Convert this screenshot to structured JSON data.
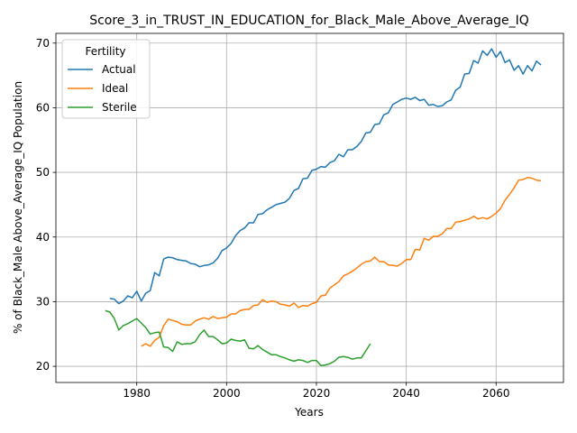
{
  "chart_data": {
    "type": "line",
    "title": "Score_3_in_TRUST_IN_EDUCATION_for_Black_Male_Above_Average_IQ",
    "xlabel": "Years",
    "ylabel": "% of Black_Male Above_Average_IQ Population",
    "xlim": [
      1962,
      2075
    ],
    "ylim": [
      17.5,
      71.5
    ],
    "xticks": [
      1980,
      2000,
      2020,
      2040,
      2060
    ],
    "yticks": [
      20,
      30,
      40,
      50,
      60,
      70
    ],
    "grid": true,
    "legend": {
      "title": "Fertility",
      "position": "upper-left"
    },
    "series": [
      {
        "name": "Actual",
        "color": "#1f77b4",
        "x": [
          1974,
          1975,
          1976,
          1977,
          1978,
          1979,
          1980,
          1981,
          1982,
          1983,
          1984,
          1985,
          1986,
          1987,
          1988,
          1989,
          1990,
          1991,
          1992,
          1993,
          1994,
          1995,
          1996,
          1997,
          1998,
          1999,
          2000,
          2001,
          2002,
          2003,
          2004,
          2005,
          2006,
          2007,
          2008,
          2009,
          2010,
          2011,
          2012,
          2013,
          2014,
          2015,
          2016,
          2017,
          2018,
          2019,
          2020,
          2021,
          2022,
          2023,
          2024,
          2025,
          2026,
          2027,
          2028,
          2029,
          2030,
          2031,
          2032,
          2033,
          2034,
          2035,
          2036,
          2037,
          2038,
          2039,
          2040,
          2041,
          2042,
          2043,
          2044,
          2045,
          2046,
          2047,
          2048,
          2049,
          2050,
          2051,
          2052,
          2053,
          2054,
          2055,
          2056,
          2057,
          2058,
          2059,
          2060,
          2061,
          2062,
          2063,
          2064,
          2065,
          2066,
          2067,
          2068,
          2069,
          2070
        ],
        "y": [
          30.5,
          30.4,
          29.7,
          30.1,
          30.9,
          30.6,
          31.6,
          30.1,
          31.3,
          31.7,
          34.5,
          34.0,
          36.6,
          36.9,
          36.8,
          36.5,
          36.4,
          36.3,
          35.9,
          35.8,
          35.4,
          35.6,
          35.7,
          36.0,
          36.7,
          37.9,
          38.3,
          39.0,
          40.2,
          41.0,
          41.4,
          42.2,
          42.2,
          43.5,
          43.6,
          44.2,
          44.6,
          45.0,
          45.2,
          45.4,
          46.0,
          47.2,
          47.5,
          49.0,
          49.1,
          50.3,
          50.5,
          50.9,
          50.8,
          51.5,
          51.8,
          52.8,
          52.4,
          53.5,
          53.5,
          54.0,
          54.8,
          56.1,
          56.2,
          57.4,
          57.5,
          58.9,
          59.2,
          60.5,
          60.9,
          61.3,
          61.5,
          61.3,
          61.6,
          61.1,
          61.3,
          60.4,
          60.5,
          60.2,
          60.3,
          60.9,
          61.2,
          62.7,
          63.2,
          65.2,
          65.3,
          67.3,
          66.9,
          68.8,
          68.1,
          69.1,
          67.8,
          68.7,
          67.0,
          67.4,
          65.8,
          66.5,
          65.2,
          66.5,
          65.7,
          67.2,
          66.6
        ]
      },
      {
        "name": "Ideal",
        "color": "#ff7f0e",
        "x": [
          1981,
          1982,
          1983,
          1984,
          1985,
          1986,
          1987,
          1988,
          1989,
          1990,
          1991,
          1992,
          1993,
          1994,
          1995,
          1996,
          1997,
          1998,
          1999,
          2000,
          2001,
          2002,
          2003,
          2004,
          2005,
          2006,
          2007,
          2008,
          2009,
          2010,
          2011,
          2012,
          2013,
          2014,
          2015,
          2016,
          2017,
          2018,
          2019,
          2020,
          2021,
          2022,
          2023,
          2024,
          2025,
          2026,
          2027,
          2028,
          2029,
          2030,
          2031,
          2032,
          2033,
          2034,
          2035,
          2036,
          2037,
          2038,
          2039,
          2040,
          2041,
          2042,
          2043,
          2044,
          2045,
          2046,
          2047,
          2048,
          2049,
          2050,
          2051,
          2052,
          2053,
          2054,
          2055,
          2056,
          2057,
          2058,
          2059,
          2060,
          2061,
          2062,
          2063,
          2064,
          2065,
          2066,
          2067,
          2068,
          2069,
          2070
        ],
        "y": [
          23.1,
          23.5,
          23.1,
          24.0,
          24.5,
          26.3,
          27.3,
          27.1,
          26.9,
          26.5,
          26.4,
          26.4,
          27.0,
          27.3,
          27.5,
          27.3,
          27.7,
          27.4,
          27.5,
          27.6,
          28.1,
          28.1,
          28.6,
          28.8,
          28.8,
          29.4,
          29.5,
          30.3,
          29.9,
          30.1,
          30.0,
          29.6,
          29.5,
          29.3,
          29.8,
          29.1,
          29.4,
          29.3,
          29.7,
          29.9,
          30.9,
          31.0,
          32.1,
          32.6,
          33.1,
          34.0,
          34.3,
          34.7,
          35.2,
          35.8,
          36.2,
          36.3,
          36.9,
          36.2,
          36.2,
          35.7,
          35.6,
          35.5,
          35.9,
          36.5,
          36.5,
          38.1,
          38.0,
          39.8,
          39.5,
          40.1,
          40.1,
          40.5,
          41.3,
          41.3,
          42.3,
          42.4,
          42.6,
          42.8,
          43.2,
          42.8,
          43.0,
          42.8,
          43.2,
          43.7,
          44.4,
          45.7,
          46.6,
          47.6,
          48.8,
          48.9,
          49.2,
          49.1,
          48.8,
          48.7
        ]
      },
      {
        "name": "Sterile",
        "color": "#2ca02c",
        "x": [
          1973,
          1974,
          1975,
          1976,
          1977,
          1978,
          1979,
          1980,
          1981,
          1982,
          1983,
          1984,
          1985,
          1986,
          1987,
          1988,
          1989,
          1990,
          1991,
          1992,
          1993,
          1994,
          1995,
          1996,
          1997,
          1998,
          1999,
          2000,
          2001,
          2002,
          2003,
          2004,
          2005,
          2006,
          2007,
          2008,
          2009,
          2010,
          2011,
          2012,
          2013,
          2014,
          2015,
          2016,
          2017,
          2018,
          2019,
          2020,
          2021,
          2022,
          2023,
          2024,
          2025,
          2026,
          2027,
          2028,
          2029,
          2030,
          2031,
          2032
        ],
        "y": [
          28.6,
          28.4,
          27.4,
          25.6,
          26.3,
          26.6,
          27.0,
          27.4,
          26.7,
          26.0,
          25.0,
          25.2,
          25.3,
          23.0,
          22.9,
          22.3,
          23.8,
          23.4,
          23.5,
          23.5,
          23.8,
          24.9,
          25.6,
          24.6,
          24.6,
          24.1,
          23.5,
          23.6,
          24.2,
          24.0,
          23.9,
          24.1,
          22.8,
          22.7,
          23.2,
          22.6,
          22.2,
          21.8,
          21.8,
          21.5,
          21.3,
          21.0,
          20.8,
          21.0,
          20.9,
          20.6,
          20.9,
          20.9,
          20.1,
          20.2,
          20.4,
          20.8,
          21.4,
          21.5,
          21.4,
          21.1,
          21.3,
          21.3,
          22.4,
          23.5
        ]
      }
    ]
  }
}
